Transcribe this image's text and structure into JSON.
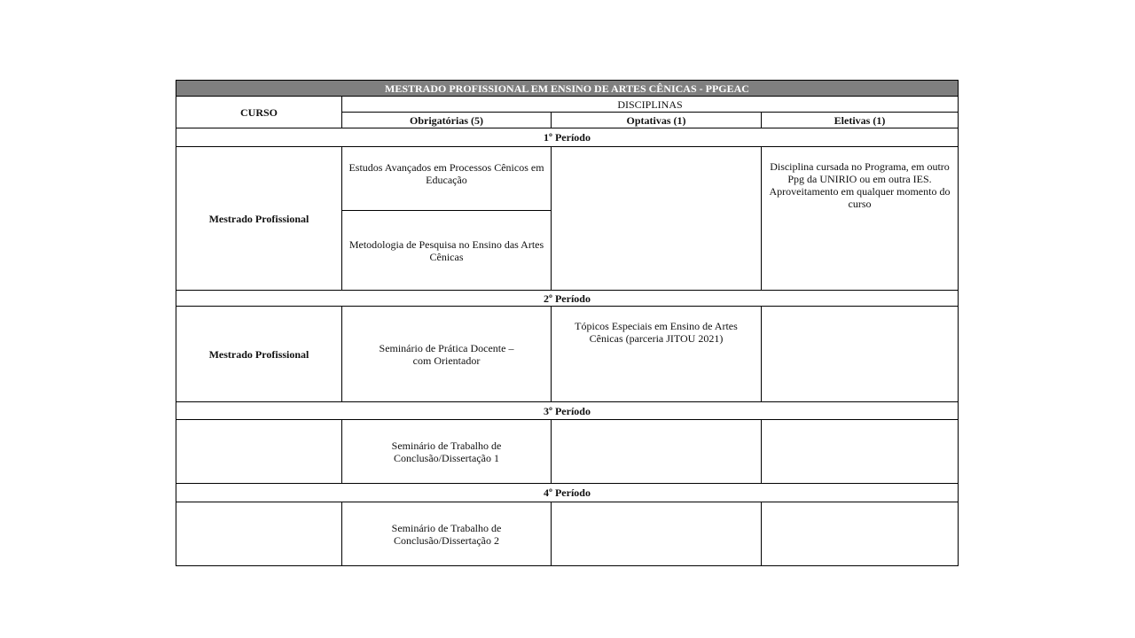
{
  "title": "MESTRADO PROFISSIONAL EM  ENSINO DE ARTES CÊNICAS - PPGEAC",
  "header": {
    "curso": "CURSO",
    "disciplinas": "DISCIPLINAS",
    "obrigatorias": "Obrigatórias (5)",
    "optativas": "Optativas (1)",
    "eletivas": "Eletivas (1)"
  },
  "periods": [
    {
      "label": "1º Período",
      "curso": "Mestrado Profissional",
      "obrigatorias": [
        "Estudos Avançados em Processos Cênicos em Educação",
        "Metodologia de Pesquisa no Ensino das Artes Cênicas"
      ],
      "optativas": "",
      "eletivas": "Disciplina cursada no Programa,  em outro Ppg da UNIRIO ou em outra IES. Aproveitamento em qualquer momento do curso"
    },
    {
      "label": "2º Período",
      "curso": "Mestrado Profissional",
      "obrigatorias": [
        "Seminário  de Prática Docente – com Orientador"
      ],
      "optativas": "Tópicos Especiais em Ensino de Artes Cênicas (parceria JITOU 2021)",
      "eletivas": ""
    },
    {
      "label": "3º Período",
      "curso": "",
      "obrigatorias": [
        "Seminário  de Trabalho de Conclusão/Dissertação  1"
      ],
      "optativas": "",
      "eletivas": ""
    },
    {
      "label": "4º Período",
      "curso": "",
      "obrigatorias": [
        "Seminário  de Trabalho de Conclusão/Dissertação 2"
      ],
      "optativas": "",
      "eletivas": ""
    }
  ]
}
